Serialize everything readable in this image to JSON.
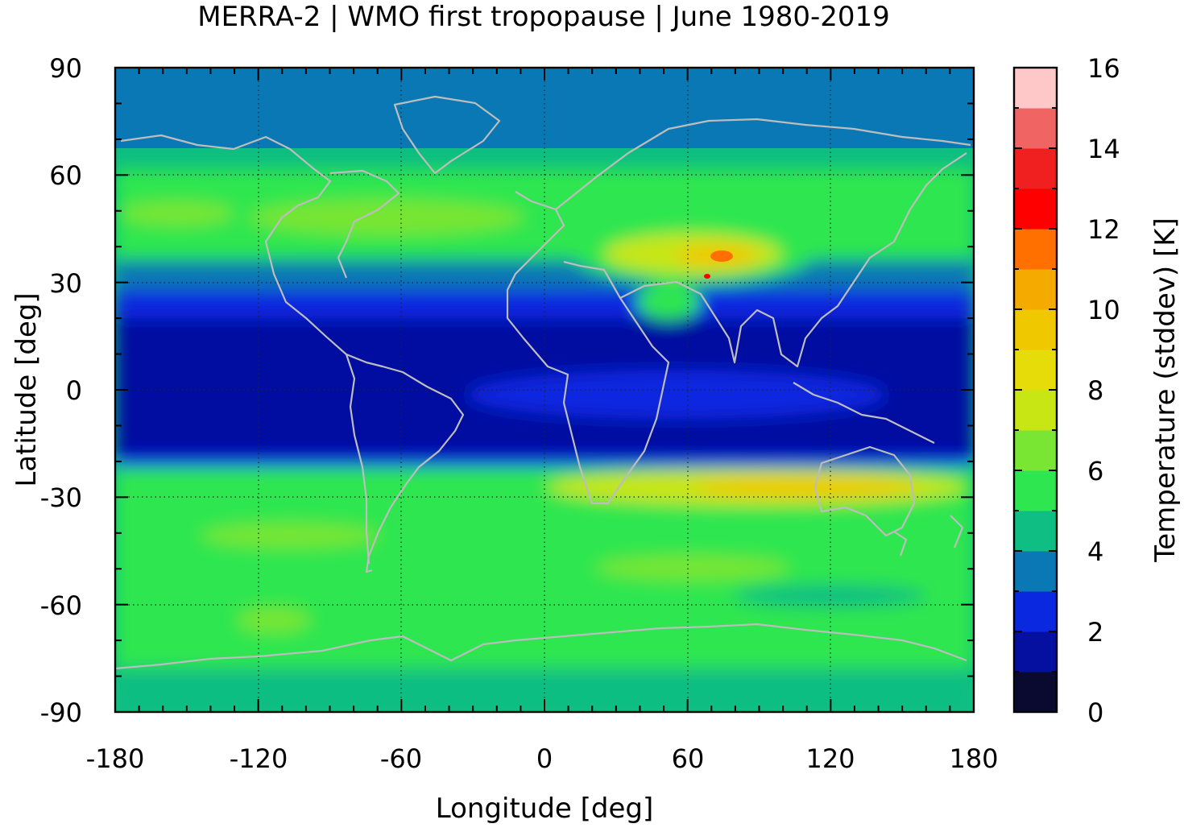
{
  "title": "MERRA-2 | WMO first tropopause | June 1980-2019",
  "map": {
    "xlabel": "Longitude [deg]",
    "ylabel": "Latitude [deg]",
    "lon_range": [
      -180,
      180
    ],
    "lat_range": [
      -90,
      90
    ],
    "x_ticks": [
      "-180",
      "-120",
      "-60",
      "0",
      "60",
      "120",
      "180"
    ],
    "y_ticks": [
      "90",
      "60",
      "30",
      "0",
      "-30",
      "-60",
      "-90"
    ],
    "grid": "dotted",
    "coastline_color": "#bdbdbd"
  },
  "colorbar": {
    "label": "Temperature (stddev) [K]",
    "tick_labels": [
      "16",
      "14",
      "12",
      "10",
      "8",
      "6",
      "4",
      "2",
      "0"
    ],
    "range": [
      0,
      16
    ],
    "colors": [
      "#0a0a30",
      "#0510a0",
      "#0a28e0",
      "#0a78b4",
      "#0ebe82",
      "#2ee650",
      "#78e632",
      "#c8e614",
      "#e6dc0a",
      "#f0c800",
      "#f5aa00",
      "#ff7000",
      "#ff0000",
      "#f02020",
      "#f06464",
      "#ffc8c8"
    ]
  }
}
